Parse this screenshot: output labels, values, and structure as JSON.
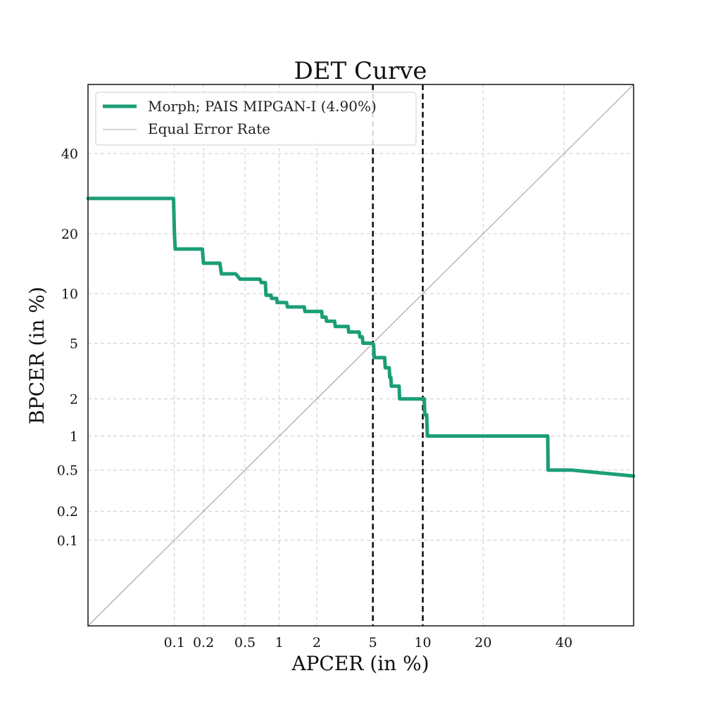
{
  "chart_data": {
    "type": "line",
    "scale": "probit",
    "title": "DET Curve",
    "xlabel": "APCER (in %)",
    "ylabel": "BPCER (in %)",
    "xlim": [
      0.01,
      60
    ],
    "ylim": [
      0.01,
      60
    ],
    "x_ticks": [
      0.1,
      0.2,
      0.5,
      1,
      2,
      5,
      10,
      20,
      40
    ],
    "x_tick_labels": [
      "0.1",
      "0.2",
      "0.5",
      "1",
      "2",
      "5",
      "10",
      "20",
      "40"
    ],
    "y_ticks": [
      0.1,
      0.2,
      0.5,
      1,
      2,
      5,
      10,
      20,
      40
    ],
    "y_tick_labels": [
      "0.1",
      "0.2",
      "0.5",
      "1",
      "2",
      "5",
      "10",
      "20",
      "40"
    ],
    "grid": true,
    "vlines": [
      5,
      10
    ],
    "legend_position": "top-left",
    "colors": {
      "series": "#1b9e77",
      "eer": "#a8a8a8",
      "vline": "#000000",
      "grid": "#cccccc",
      "frame": "#222222"
    },
    "series": [
      {
        "name": "Morph; PAIS MIPGAN-I (4.90%)",
        "points": [
          [
            0.01,
            28
          ],
          [
            0.098,
            28
          ],
          [
            0.1,
            20.5
          ],
          [
            0.102,
            17
          ],
          [
            0.195,
            17
          ],
          [
            0.2,
            14.5
          ],
          [
            0.29,
            14.5
          ],
          [
            0.3,
            12.8
          ],
          [
            0.41,
            12.8
          ],
          [
            0.45,
            12
          ],
          [
            0.68,
            12
          ],
          [
            0.7,
            11.5
          ],
          [
            0.76,
            11.5
          ],
          [
            0.77,
            9.8
          ],
          [
            0.85,
            9.8
          ],
          [
            0.86,
            9.4
          ],
          [
            0.95,
            9.4
          ],
          [
            0.96,
            8.9
          ],
          [
            1.15,
            8.9
          ],
          [
            1.17,
            8.4
          ],
          [
            1.6,
            8.4
          ],
          [
            1.62,
            7.9
          ],
          [
            2.18,
            7.9
          ],
          [
            2.2,
            7.3
          ],
          [
            2.35,
            7.3
          ],
          [
            2.37,
            6.9
          ],
          [
            2.72,
            6.9
          ],
          [
            2.75,
            6.4
          ],
          [
            3.4,
            6.4
          ],
          [
            3.43,
            5.9
          ],
          [
            4.05,
            5.9
          ],
          [
            4.1,
            5.5
          ],
          [
            4.25,
            5.5
          ],
          [
            4.3,
            5
          ],
          [
            4.95,
            5
          ],
          [
            5.05,
            4.9
          ],
          [
            5.1,
            4
          ],
          [
            5.95,
            4
          ],
          [
            6.0,
            3.4
          ],
          [
            6.35,
            3.4
          ],
          [
            6.4,
            2.9
          ],
          [
            6.5,
            2.9
          ],
          [
            6.55,
            2.5
          ],
          [
            7.3,
            2.5
          ],
          [
            7.35,
            2
          ],
          [
            10.2,
            2
          ],
          [
            10.25,
            1.5
          ],
          [
            10.5,
            1.5
          ],
          [
            10.6,
            1
          ],
          [
            35.5,
            1
          ],
          [
            35.6,
            0.5
          ],
          [
            42,
            0.5
          ],
          [
            60,
            0.44
          ]
        ]
      },
      {
        "name": "Equal Error Rate",
        "points": [
          [
            0.01,
            0.01
          ],
          [
            60,
            60
          ]
        ]
      }
    ]
  }
}
